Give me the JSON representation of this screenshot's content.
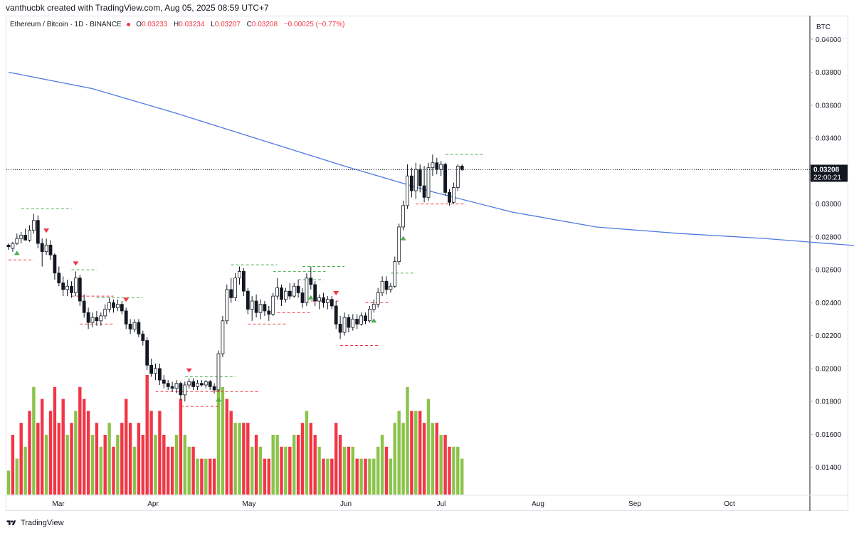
{
  "header": {
    "creator_text": "vanthucbk created with TradingView.com, Aug 05, 2025 08:59 UTC+7"
  },
  "legend": {
    "symbol": "Ethereum / Bitcoin · 1D · BINANCE",
    "open_label": "O",
    "open": "0.03233",
    "high_label": "H",
    "high": "0.03234",
    "low_label": "L",
    "low": "0.03207",
    "close_label": "C",
    "close": "0.03208",
    "change": "−0.00025 (−0.77%)"
  },
  "axis": {
    "currency": "BTC",
    "price_ticks": [
      "0.04000",
      "0.03800",
      "0.03600",
      "0.03400",
      "0.03200",
      "0.03000",
      "0.02800",
      "0.02600",
      "0.02400",
      "0.02200",
      "0.02000",
      "0.01800",
      "0.01600",
      "0.01400"
    ],
    "current_price": "0.03208",
    "countdown": "22:00:21",
    "time_ticks": [
      "Mar",
      "Apr",
      "May",
      "Jun",
      "Jul",
      "Aug",
      "Sep",
      "Oct"
    ]
  },
  "footer": {
    "brand": "TradingView"
  },
  "colors": {
    "up": "#089981",
    "down": "#131722",
    "ma": "#4f7ae0",
    "vol_up": "#8bc34a",
    "vol_down": "#f23645",
    "signal_up": "#4caf50",
    "signal_down": "#f23645",
    "box_fill": "#fdebd0",
    "box_border": "#f5a623"
  },
  "chart_data": {
    "type": "candlestick",
    "symbol": "ETHBTC",
    "timeframe": "1D",
    "ylim": [
      0.0123,
      0.0404
    ],
    "current_price": 0.03208,
    "ma_line": [
      [
        0,
        0.038
      ],
      [
        20,
        0.037
      ],
      [
        40,
        0.0355
      ],
      [
        60,
        0.0339
      ],
      [
        80,
        0.0323
      ],
      [
        100,
        0.0308
      ],
      [
        120,
        0.0295
      ],
      [
        140,
        0.0286
      ],
      [
        160,
        0.0282
      ],
      [
        180,
        0.0279
      ],
      [
        200,
        0.0275
      ],
      [
        220,
        0.0271
      ],
      [
        235,
        0.0267
      ],
      [
        245,
        0.0265
      ],
      [
        255,
        0.0267
      ],
      [
        270,
        0.0272
      ],
      [
        280,
        0.0273
      ]
    ],
    "range_box": {
      "x_start": 253,
      "x_end": 303,
      "top": 0.03245,
      "bottom": 0.02998
    },
    "candles": [
      [
        0.0275,
        0.0276,
        0.0272,
        0.0274
      ],
      [
        0.0273,
        0.0277,
        0.0271,
        0.0276
      ],
      [
        0.0276,
        0.0282,
        0.0275,
        0.0279
      ],
      [
        0.0279,
        0.0283,
        0.0276,
        0.0281
      ],
      [
        0.0281,
        0.0285,
        0.0279,
        0.0278
      ],
      [
        0.0278,
        0.0287,
        0.0277,
        0.0284
      ],
      [
        0.0284,
        0.0294,
        0.0282,
        0.029
      ],
      [
        0.029,
        0.0293,
        0.0273,
        0.0276
      ],
      [
        0.0276,
        0.0279,
        0.0262,
        0.0271
      ],
      [
        0.0271,
        0.0279,
        0.0269,
        0.0275
      ],
      [
        0.0275,
        0.0278,
        0.0266,
        0.0269
      ],
      [
        0.0269,
        0.027,
        0.0254,
        0.0258
      ],
      [
        0.0258,
        0.0262,
        0.025,
        0.0252
      ],
      [
        0.0252,
        0.0256,
        0.0244,
        0.0248
      ],
      [
        0.0248,
        0.0254,
        0.0244,
        0.025
      ],
      [
        0.025,
        0.0253,
        0.0243,
        0.0246
      ],
      [
        0.0246,
        0.0259,
        0.0244,
        0.0255
      ],
      [
        0.0255,
        0.0257,
        0.0238,
        0.0241
      ],
      [
        0.0241,
        0.0245,
        0.0231,
        0.0234
      ],
      [
        0.0234,
        0.0237,
        0.0224,
        0.0228
      ],
      [
        0.0228,
        0.0234,
        0.0225,
        0.0231
      ],
      [
        0.0231,
        0.0235,
        0.0226,
        0.0229
      ],
      [
        0.0229,
        0.0234,
        0.0226,
        0.0232
      ],
      [
        0.0232,
        0.0239,
        0.023,
        0.0236
      ],
      [
        0.0236,
        0.0243,
        0.0234,
        0.024
      ],
      [
        0.024,
        0.0242,
        0.0234,
        0.0237
      ],
      [
        0.0237,
        0.0242,
        0.0235,
        0.0239
      ],
      [
        0.0239,
        0.0241,
        0.0233,
        0.0235
      ],
      [
        0.0235,
        0.0237,
        0.0224,
        0.0227
      ],
      [
        0.0227,
        0.023,
        0.0221,
        0.0224
      ],
      [
        0.0224,
        0.023,
        0.0222,
        0.0228
      ],
      [
        0.0228,
        0.023,
        0.0219,
        0.0221
      ],
      [
        0.0221,
        0.0223,
        0.0214,
        0.0217
      ],
      [
        0.0217,
        0.0219,
        0.0199,
        0.0202
      ],
      [
        0.0202,
        0.0206,
        0.0195,
        0.0197
      ],
      [
        0.0197,
        0.0203,
        0.0193,
        0.02
      ],
      [
        0.02,
        0.0203,
        0.019,
        0.0193
      ],
      [
        0.0193,
        0.0196,
        0.0188,
        0.0191
      ],
      [
        0.0191,
        0.0193,
        0.0187,
        0.0189
      ],
      [
        0.0189,
        0.0192,
        0.0186,
        0.0188
      ],
      [
        0.0188,
        0.0193,
        0.0185,
        0.0191
      ],
      [
        0.0191,
        0.0192,
        0.0181,
        0.0184
      ],
      [
        0.0184,
        0.0192,
        0.018,
        0.019
      ],
      [
        0.019,
        0.0194,
        0.0188,
        0.0192
      ],
      [
        0.0192,
        0.0194,
        0.0187,
        0.0189
      ],
      [
        0.0189,
        0.0193,
        0.0187,
        0.0191
      ],
      [
        0.0191,
        0.0193,
        0.0189,
        0.019
      ],
      [
        0.019,
        0.0193,
        0.0188,
        0.0192
      ],
      [
        0.0192,
        0.0193,
        0.0187,
        0.0189
      ],
      [
        0.0189,
        0.0191,
        0.0185,
        0.0187
      ],
      [
        0.0187,
        0.0211,
        0.0186,
        0.0209
      ],
      [
        0.0209,
        0.0232,
        0.0207,
        0.0229
      ],
      [
        0.0229,
        0.0251,
        0.0227,
        0.0248
      ],
      [
        0.0248,
        0.0255,
        0.024,
        0.0243
      ],
      [
        0.0243,
        0.0258,
        0.0241,
        0.0255
      ],
      [
        0.0255,
        0.0262,
        0.0251,
        0.0259
      ],
      [
        0.0259,
        0.0261,
        0.0244,
        0.0247
      ],
      [
        0.0247,
        0.0249,
        0.0233,
        0.0236
      ],
      [
        0.0236,
        0.0244,
        0.0229,
        0.0241
      ],
      [
        0.0241,
        0.0245,
        0.0231,
        0.0234
      ],
      [
        0.0234,
        0.0242,
        0.023,
        0.0239
      ],
      [
        0.0239,
        0.0241,
        0.0232,
        0.0235
      ],
      [
        0.0235,
        0.0238,
        0.0229,
        0.0233
      ],
      [
        0.0233,
        0.0246,
        0.0232,
        0.0244
      ],
      [
        0.0244,
        0.0255,
        0.0242,
        0.0249
      ],
      [
        0.0249,
        0.0251,
        0.0238,
        0.0242
      ],
      [
        0.0242,
        0.0249,
        0.024,
        0.0247
      ],
      [
        0.0247,
        0.0252,
        0.0242,
        0.0244
      ],
      [
        0.0244,
        0.0252,
        0.0243,
        0.025
      ],
      [
        0.025,
        0.0254,
        0.0243,
        0.0246
      ],
      [
        0.0246,
        0.0249,
        0.0237,
        0.024
      ],
      [
        0.024,
        0.0258,
        0.0238,
        0.0255
      ],
      [
        0.0255,
        0.0262,
        0.0248,
        0.0251
      ],
      [
        0.0251,
        0.0253,
        0.0238,
        0.0241
      ],
      [
        0.0241,
        0.0245,
        0.0236,
        0.0243
      ],
      [
        0.0243,
        0.0246,
        0.0237,
        0.024
      ],
      [
        0.024,
        0.0244,
        0.0236,
        0.0242
      ],
      [
        0.0242,
        0.0244,
        0.0236,
        0.0238
      ],
      [
        0.0238,
        0.0241,
        0.0224,
        0.0227
      ],
      [
        0.0227,
        0.0232,
        0.0218,
        0.0222
      ],
      [
        0.0222,
        0.0234,
        0.022,
        0.0231
      ],
      [
        0.0231,
        0.0233,
        0.0222,
        0.0225
      ],
      [
        0.0225,
        0.0233,
        0.0223,
        0.023
      ],
      [
        0.023,
        0.0233,
        0.0224,
        0.0227
      ],
      [
        0.0227,
        0.0234,
        0.0226,
        0.0232
      ],
      [
        0.0232,
        0.0234,
        0.0227,
        0.0229
      ],
      [
        0.0229,
        0.0238,
        0.0228,
        0.0236
      ],
      [
        0.0236,
        0.0242,
        0.0234,
        0.0239
      ],
      [
        0.0239,
        0.0249,
        0.0237,
        0.0246
      ],
      [
        0.0246,
        0.0256,
        0.0244,
        0.0253
      ],
      [
        0.0253,
        0.0256,
        0.0245,
        0.0248
      ],
      [
        0.0248,
        0.0252,
        0.0246,
        0.025
      ],
      [
        0.025,
        0.0268,
        0.0249,
        0.0265
      ],
      [
        0.0265,
        0.0288,
        0.0263,
        0.0286
      ],
      [
        0.0286,
        0.0302,
        0.0284,
        0.0299
      ],
      [
        0.0299,
        0.0324,
        0.0297,
        0.0317
      ],
      [
        0.0317,
        0.0322,
        0.0304,
        0.0308
      ],
      [
        0.0308,
        0.0325,
        0.0303,
        0.0321
      ],
      [
        0.0321,
        0.0324,
        0.0307,
        0.0311
      ],
      [
        0.0311,
        0.0323,
        0.0301,
        0.0304
      ],
      [
        0.0304,
        0.0325,
        0.0302,
        0.0322
      ],
      [
        0.0322,
        0.033,
        0.0317,
        0.0325
      ],
      [
        0.0325,
        0.0328,
        0.0318,
        0.0321
      ],
      [
        0.0321,
        0.0326,
        0.0317,
        0.0324
      ],
      [
        0.0324,
        0.0325,
        0.0305,
        0.0307
      ],
      [
        0.0307,
        0.0309,
        0.0299,
        0.0301
      ],
      [
        0.0301,
        0.0313,
        0.03,
        0.031
      ],
      [
        0.031,
        0.0324,
        0.0308,
        0.0323
      ],
      [
        0.0323,
        0.0324,
        0.032,
        0.0321
      ]
    ],
    "volumes": [
      [
        0.2,
        1
      ],
      [
        0.5,
        0
      ],
      [
        0.3,
        1
      ],
      [
        0.6,
        0
      ],
      [
        0.4,
        1
      ],
      [
        0.7,
        0
      ],
      [
        0.9,
        1
      ],
      [
        0.6,
        0
      ],
      [
        0.8,
        0
      ],
      [
        0.5,
        1
      ],
      [
        0.7,
        0
      ],
      [
        0.9,
        0
      ],
      [
        0.6,
        0
      ],
      [
        0.8,
        0
      ],
      [
        0.5,
        1
      ],
      [
        0.6,
        0
      ],
      [
        0.7,
        1
      ],
      [
        0.9,
        0
      ],
      [
        0.8,
        0
      ],
      [
        0.7,
        0
      ],
      [
        0.5,
        1
      ],
      [
        0.6,
        0
      ],
      [
        0.4,
        1
      ],
      [
        0.5,
        0
      ],
      [
        0.6,
        1
      ],
      [
        0.4,
        0
      ],
      [
        0.5,
        1
      ],
      [
        0.6,
        0
      ],
      [
        0.8,
        0
      ],
      [
        0.6,
        0
      ],
      [
        0.4,
        1
      ],
      [
        0.6,
        0
      ],
      [
        0.5,
        0
      ],
      [
        1.0,
        0
      ],
      [
        0.7,
        0
      ],
      [
        0.5,
        1
      ],
      [
        0.7,
        0
      ],
      [
        0.5,
        0
      ],
      [
        0.4,
        0
      ],
      [
        0.4,
        0
      ],
      [
        0.5,
        1
      ],
      [
        0.8,
        0
      ],
      [
        0.5,
        1
      ],
      [
        0.4,
        1
      ],
      [
        0.4,
        0
      ],
      [
        0.3,
        1
      ],
      [
        0.3,
        0
      ],
      [
        0.3,
        1
      ],
      [
        0.3,
        0
      ],
      [
        0.3,
        0
      ],
      [
        1.0,
        1
      ],
      [
        0.9,
        1
      ],
      [
        0.8,
        0
      ],
      [
        0.7,
        0
      ],
      [
        0.6,
        1
      ],
      [
        0.6,
        1
      ],
      [
        0.6,
        0
      ],
      [
        0.6,
        0
      ],
      [
        0.4,
        1
      ],
      [
        0.5,
        0
      ],
      [
        0.4,
        1
      ],
      [
        0.3,
        0
      ],
      [
        0.3,
        0
      ],
      [
        0.5,
        1
      ],
      [
        0.5,
        1
      ],
      [
        0.4,
        0
      ],
      [
        0.4,
        1
      ],
      [
        0.4,
        0
      ],
      [
        0.5,
        1
      ],
      [
        0.5,
        0
      ],
      [
        0.6,
        0
      ],
      [
        0.7,
        1
      ],
      [
        0.6,
        0
      ],
      [
        0.5,
        0
      ],
      [
        0.4,
        1
      ],
      [
        0.3,
        0
      ],
      [
        0.3,
        1
      ],
      [
        0.3,
        0
      ],
      [
        0.6,
        0
      ],
      [
        0.5,
        0
      ],
      [
        0.4,
        1
      ],
      [
        0.4,
        0
      ],
      [
        0.4,
        1
      ],
      [
        0.3,
        0
      ],
      [
        0.3,
        1
      ],
      [
        0.3,
        0
      ],
      [
        0.3,
        1
      ],
      [
        0.3,
        1
      ],
      [
        0.4,
        1
      ],
      [
        0.5,
        1
      ],
      [
        0.4,
        0
      ],
      [
        0.3,
        1
      ],
      [
        0.6,
        1
      ],
      [
        0.7,
        1
      ],
      [
        0.6,
        1
      ],
      [
        0.9,
        1
      ],
      [
        0.7,
        0
      ],
      [
        0.7,
        1
      ],
      [
        0.7,
        0
      ],
      [
        0.6,
        0
      ],
      [
        0.8,
        1
      ],
      [
        0.6,
        1
      ],
      [
        0.6,
        0
      ],
      [
        0.5,
        1
      ],
      [
        0.5,
        0
      ],
      [
        0.4,
        0
      ],
      [
        0.4,
        1
      ],
      [
        0.4,
        1
      ],
      [
        0.3,
        1
      ]
    ],
    "signals": [
      {
        "i": 2,
        "dir": "up"
      },
      {
        "i": 9,
        "dir": "down"
      },
      {
        "i": 16,
        "dir": "down"
      },
      {
        "i": 28,
        "dir": "down"
      },
      {
        "i": 43,
        "dir": "down"
      },
      {
        "i": 50,
        "dir": "up"
      },
      {
        "i": 72,
        "dir": "up"
      },
      {
        "i": 78,
        "dir": "down"
      },
      {
        "i": 87,
        "dir": "up"
      },
      {
        "i": 94,
        "dir": "up"
      }
    ],
    "levels": [
      {
        "type": "res",
        "from": 3,
        "to": 15,
        "price": 0.0297
      },
      {
        "type": "sup",
        "from": 0,
        "to": 6,
        "price": 0.0266
      },
      {
        "type": "res",
        "from": 15,
        "to": 21,
        "price": 0.026
      },
      {
        "type": "sup",
        "from": 15,
        "to": 25,
        "price": 0.0244
      },
      {
        "type": "res",
        "from": 21,
        "to": 32,
        "price": 0.0243
      },
      {
        "type": "sup",
        "from": 17,
        "to": 25,
        "price": 0.0227
      },
      {
        "type": "res",
        "from": 42,
        "to": 54,
        "price": 0.0195
      },
      {
        "type": "sup",
        "from": 35,
        "to": 60,
        "price": 0.0186
      },
      {
        "type": "sup",
        "from": 41,
        "to": 50,
        "price": 0.0177
      },
      {
        "type": "res",
        "from": 53,
        "to": 64,
        "price": 0.0263
      },
      {
        "type": "sup",
        "from": 57,
        "to": 66,
        "price": 0.0227
      },
      {
        "type": "res",
        "from": 63,
        "to": 76,
        "price": 0.0259
      },
      {
        "type": "res",
        "from": 70,
        "to": 80,
        "price": 0.0262
      },
      {
        "type": "res",
        "from": 69,
        "to": 75,
        "price": 0.0254
      },
      {
        "type": "sup",
        "from": 64,
        "to": 72,
        "price": 0.0234
      },
      {
        "type": "sup",
        "from": 72,
        "to": 79,
        "price": 0.0241
      },
      {
        "type": "sup",
        "from": 79,
        "to": 88,
        "price": 0.0214
      },
      {
        "type": "sup",
        "from": 85,
        "to": 91,
        "price": 0.024
      },
      {
        "type": "res",
        "from": 91,
        "to": 97,
        "price": 0.0258
      },
      {
        "type": "res",
        "from": 104,
        "to": 113,
        "price": 0.033
      },
      {
        "type": "sup",
        "from": 97,
        "to": 109,
        "price": 0.03
      }
    ]
  }
}
